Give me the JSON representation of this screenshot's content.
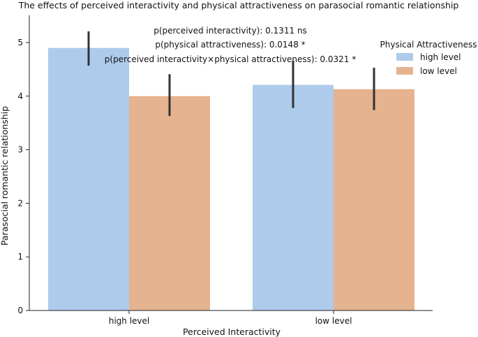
{
  "chart_data": {
    "type": "bar",
    "title": "The effects of perceived interactivity and physical attractiveness on parasocial romantic relationship",
    "xlabel": "Perceived Interactivity",
    "ylabel": "Parasocial romantic relationship",
    "categories": [
      "high level",
      "low level"
    ],
    "ylim": [
      0,
      5.5
    ],
    "yticks": [
      0,
      1,
      2,
      3,
      4,
      5
    ],
    "grid": false,
    "legend": {
      "title": "Physical Attractiveness",
      "position": "top-right"
    },
    "series": [
      {
        "name": "high level",
        "color": "#aecbeb",
        "values": [
          4.9,
          4.21
        ],
        "err_low": [
          4.57,
          3.78
        ],
        "err_high": [
          5.21,
          4.66
        ]
      },
      {
        "name": "low level",
        "color": "#e5b38f",
        "values": [
          4.0,
          4.13
        ],
        "err_low": [
          3.63,
          3.74
        ],
        "err_high": [
          4.41,
          4.53
        ]
      }
    ],
    "annotations": [
      "p(perceived interactivity): 0.1311 ns",
      "p(physical attractiveness): 0.0148 *",
      "p(perceived interactivity×physical attractiveness): 0.0321 *"
    ],
    "errorbar_color": "#333333"
  }
}
